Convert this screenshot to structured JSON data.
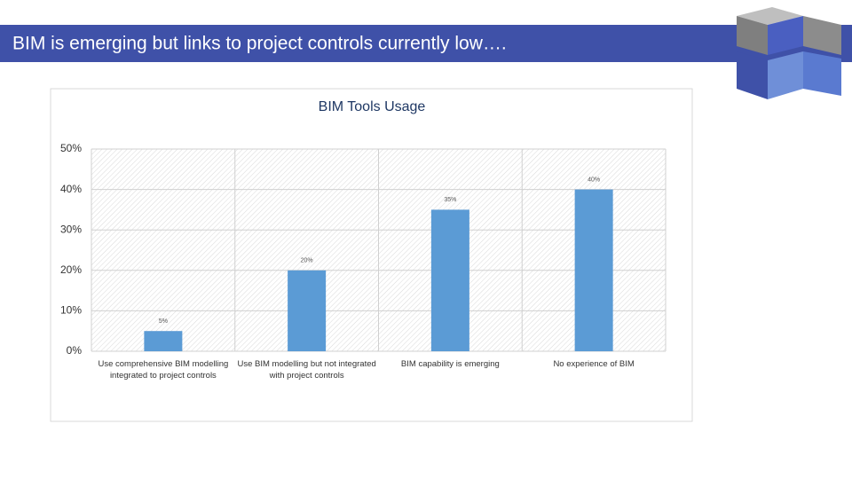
{
  "header": {
    "title": "BIM is emerging but links to project controls currently low…."
  },
  "chart_data": {
    "type": "bar",
    "title": "BIM Tools Usage",
    "categories": [
      "Use comprehensive BIM modelling integrated to project controls",
      "Use BIM modelling but not integrated with project controls",
      "BIM capability is emerging",
      "No experience of BIM"
    ],
    "values": [
      5,
      20,
      35,
      40
    ],
    "value_labels": [
      "5%",
      "20%",
      "35%",
      "40%"
    ],
    "color": "#5b9bd5",
    "ylim": [
      0,
      50
    ],
    "yticks": [
      {
        "value": 0,
        "label": "0%"
      },
      {
        "value": 10,
        "label": "10%"
      },
      {
        "value": 20,
        "label": "20%"
      },
      {
        "value": 30,
        "label": "30%"
      },
      {
        "value": 40,
        "label": "40%"
      },
      {
        "value": 50,
        "label": "50%"
      }
    ],
    "grid": true
  }
}
